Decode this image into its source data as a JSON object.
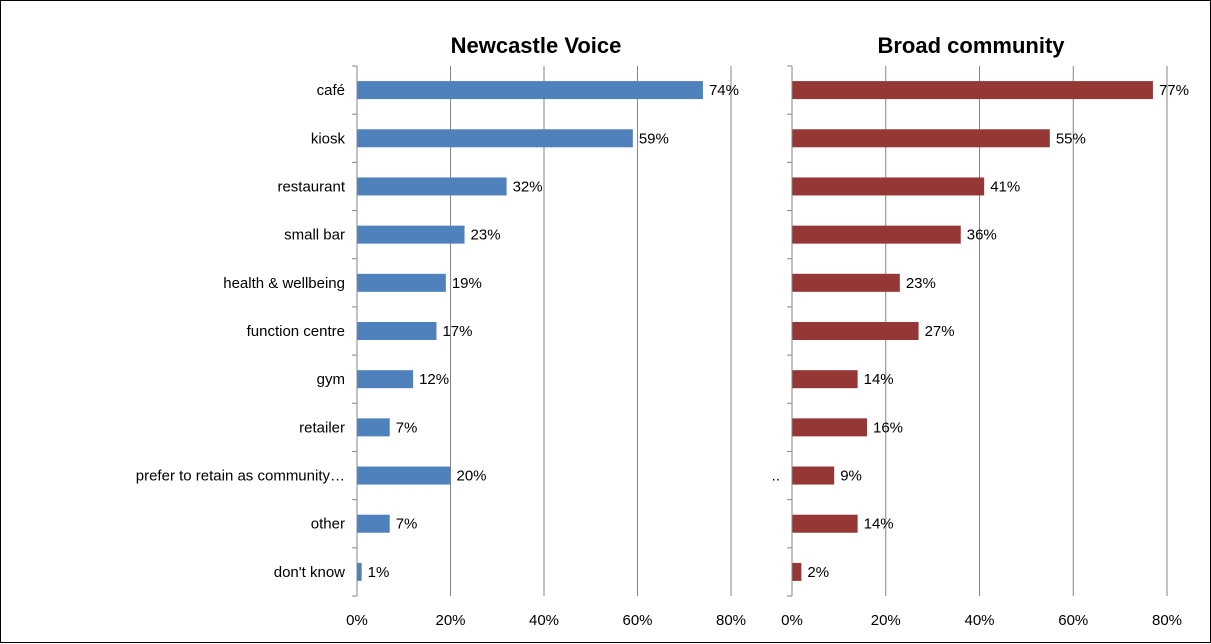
{
  "chart_data": {
    "type": "bar",
    "orientation": "horizontal",
    "categories": [
      "café",
      "kiosk",
      "restaurant",
      "small bar",
      "health & wellbeing",
      "function centre",
      "gym",
      "retailer",
      "prefer to retain as community…",
      "other",
      "don't know"
    ],
    "xlim": [
      0,
      80
    ],
    "x_ticks": [
      "0%",
      "20%",
      "40%",
      "60%",
      "80%"
    ],
    "grid": "vertical",
    "panels": [
      {
        "title": "Newcastle Voice",
        "color": "#4f81bd",
        "values": [
          74,
          59,
          32,
          23,
          19,
          17,
          12,
          7,
          20,
          7,
          1
        ],
        "labels": [
          "74%",
          "59%",
          "32%",
          "23%",
          "19%",
          "17%",
          "12%",
          "7%",
          "20%",
          "7%",
          "1%"
        ]
      },
      {
        "title": "Broad community",
        "color": "#953735",
        "truncated_category_mark": "..",
        "values": [
          77,
          55,
          41,
          36,
          23,
          27,
          14,
          16,
          9,
          14,
          2
        ],
        "labels": [
          "77%",
          "55%",
          "41%",
          "36%",
          "23%",
          "27%",
          "14%",
          "16%",
          "9%",
          "14%",
          "2%"
        ]
      }
    ]
  }
}
